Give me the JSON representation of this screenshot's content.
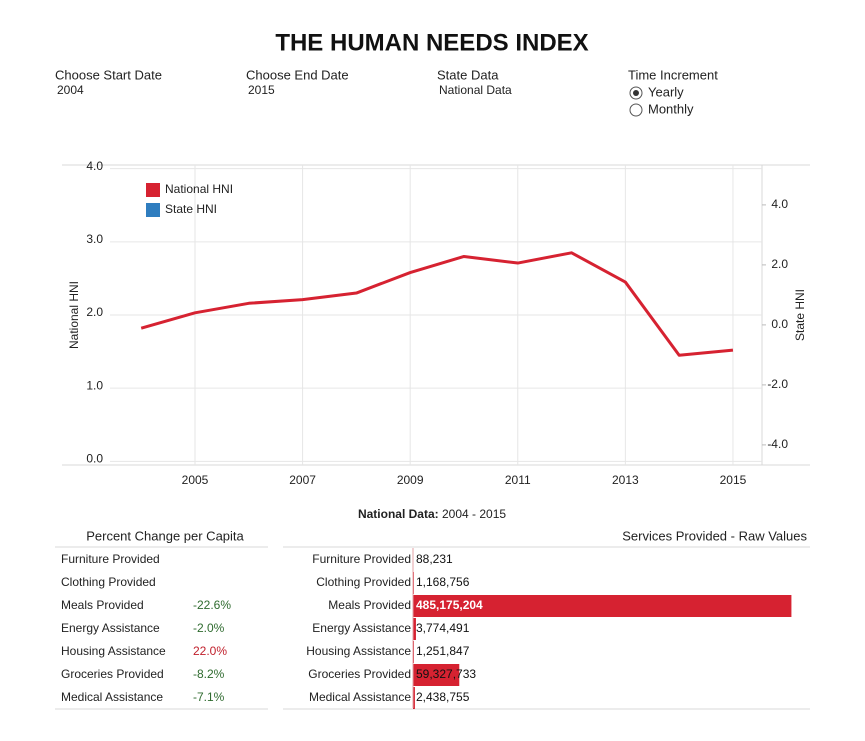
{
  "title": "THE HUMAN NEEDS INDEX",
  "controls": [
    {
      "label": "Choose Start Date",
      "value": "2004"
    },
    {
      "label": "Choose End Date",
      "value": "2015"
    },
    {
      "label": "State Data",
      "value": "National Data"
    }
  ],
  "time_increment": {
    "label": "Time Increment",
    "options": [
      "Yearly",
      "Monthly"
    ],
    "selected": 0
  },
  "chart_data": [
    {
      "type": "line",
      "x": [
        2004,
        2005,
        2006,
        2007,
        2008,
        2009,
        2010,
        2011,
        2012,
        2013,
        2014,
        2015
      ],
      "series": [
        {
          "name": "National HNI",
          "color": "#d62231",
          "values": [
            1.82,
            2.03,
            2.16,
            2.21,
            2.3,
            2.58,
            2.8,
            2.71,
            2.85,
            2.45,
            1.45,
            1.52
          ]
        },
        {
          "name": "State HNI",
          "color": "#2f7dbf",
          "axis": "y2",
          "values": [
            null,
            null,
            null,
            null,
            null,
            null,
            null,
            null,
            null,
            null,
            null,
            null
          ]
        }
      ],
      "y_label": "National HNI",
      "y2_label": "State HNI",
      "xlim": [
        2003.42,
        2015.54
      ],
      "xticks": [
        2005,
        2007,
        2009,
        2011,
        2013,
        2015
      ],
      "ylim": [
        -0.05,
        4.05
      ],
      "yticks": [
        {
          "value": 0,
          "label": "0.0"
        },
        {
          "value": 1,
          "label": "1.0"
        },
        {
          "value": 2,
          "label": "2.0"
        },
        {
          "value": 3,
          "label": "3.0"
        },
        {
          "value": 4,
          "label": "4.0"
        }
      ],
      "y2lim": [
        -4.67,
        5.33
      ],
      "y2ticks": [
        {
          "value": -4,
          "label": "-4.0"
        },
        {
          "value": -2,
          "label": "-2.0"
        },
        {
          "value": 0,
          "label": "0.0"
        },
        {
          "value": 2,
          "label": "2.0"
        },
        {
          "value": 4,
          "label": "4.0"
        }
      ],
      "grid": true,
      "legend": "top-left",
      "caption": {
        "label": "National Data:",
        "text": "2004 - 2015"
      }
    },
    {
      "type": "bar",
      "orientation": "horizontal",
      "title": "Services Provided - Raw Values",
      "categories": [
        "Furniture Provided",
        "Clothing Provided",
        "Meals Provided",
        "Energy Assistance",
        "Housing Assistance",
        "Groceries Provided",
        "Medical Assistance"
      ],
      "values": [
        88231,
        1168756,
        485175204,
        3774491,
        1251847,
        59327733,
        2438755
      ],
      "value_labels": [
        "88,231",
        "1,168,756",
        "485,175,204",
        "3,774,491",
        "1,251,847",
        "59,327,733",
        "2,438,755"
      ],
      "color": "#d62231",
      "xlim": [
        0,
        509000000
      ]
    }
  ],
  "percent_change": {
    "title": "Percent Change per Capita",
    "rows": [
      {
        "label": "Furniture Provided",
        "value": null
      },
      {
        "label": "Clothing Provided",
        "value": null
      },
      {
        "label": "Meals Provided",
        "value": "-22.6%"
      },
      {
        "label": "Energy Assistance",
        "value": "-2.0%"
      },
      {
        "label": "Housing Assistance",
        "value": "22.0%"
      },
      {
        "label": "Groceries Provided",
        "value": "-8.2%"
      },
      {
        "label": "Medical Assistance",
        "value": "-7.1%"
      }
    ]
  }
}
